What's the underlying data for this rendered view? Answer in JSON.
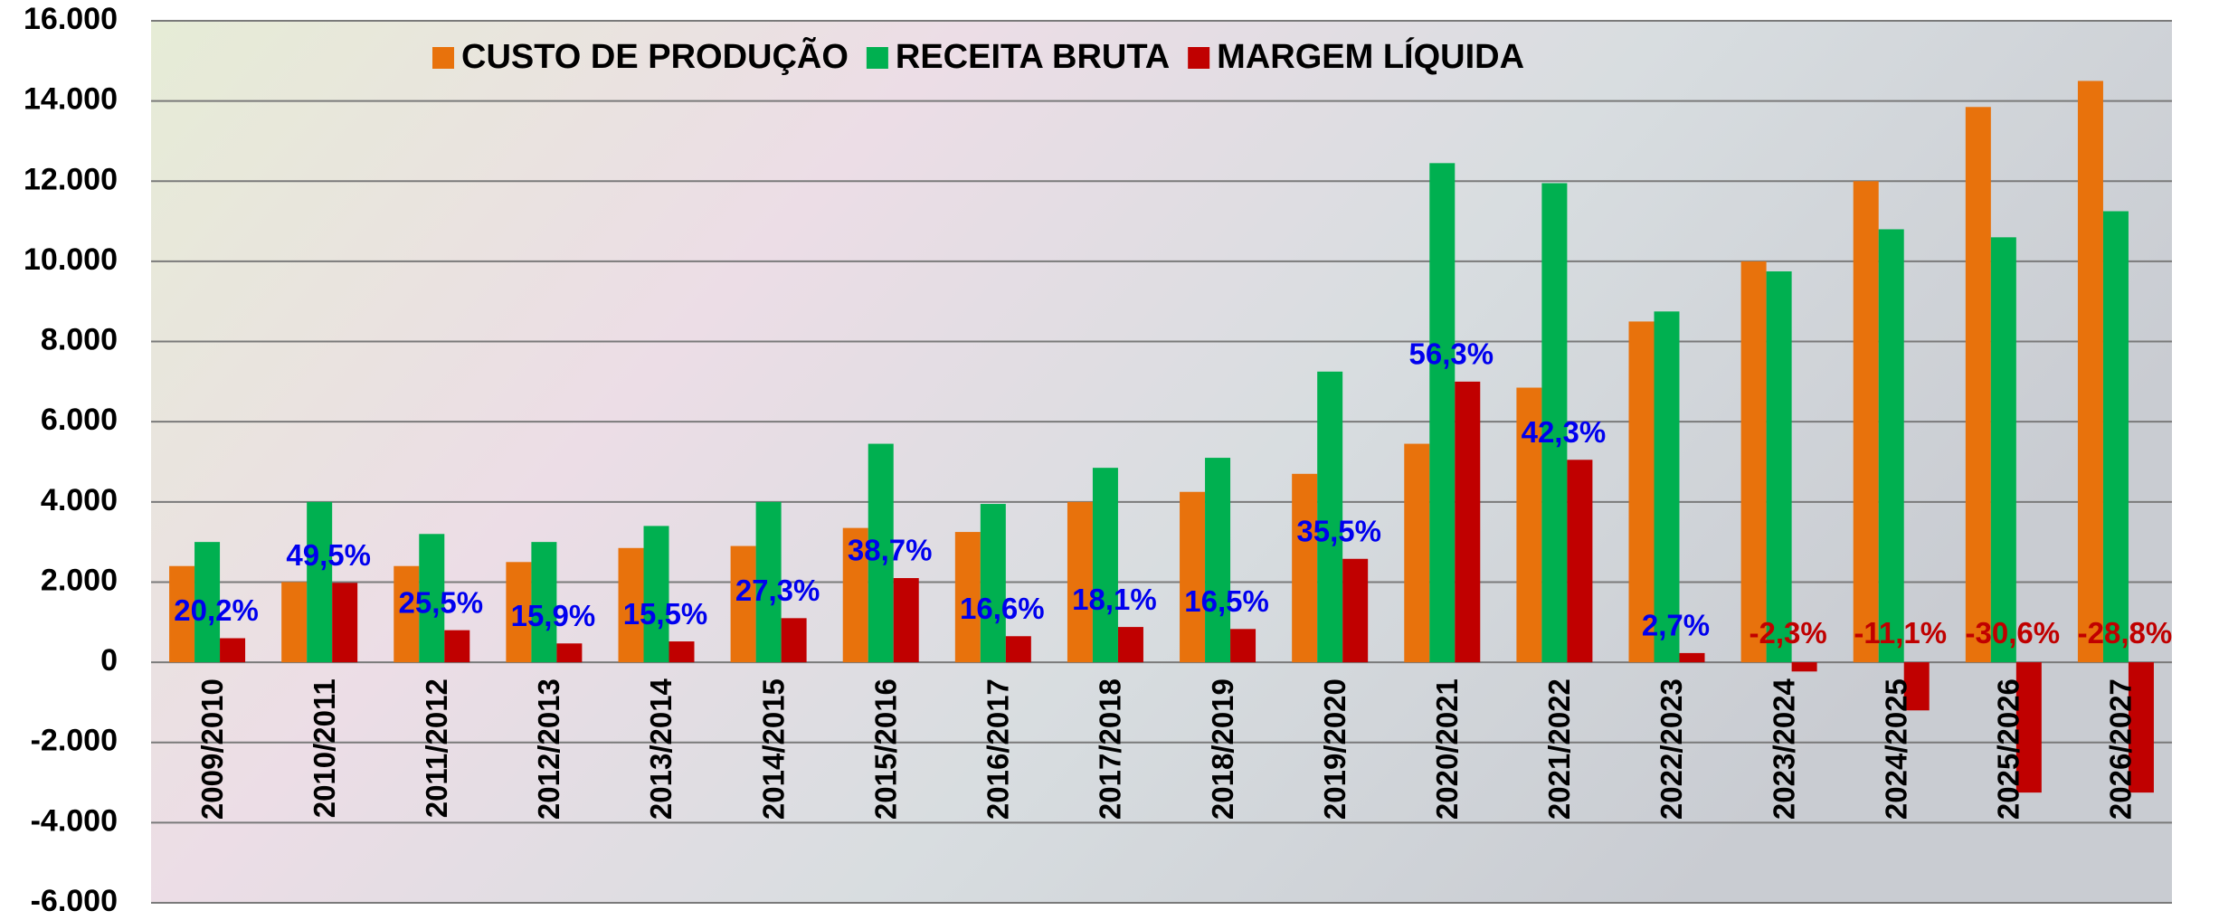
{
  "chart_data": {
    "type": "bar",
    "categories": [
      "2009/2010",
      "2010/2011",
      "2011/2012",
      "2012/2013",
      "2013/2014",
      "2014/2015",
      "2015/2016",
      "2016/2017",
      "2017/2018",
      "2018/2019",
      "2019/2020",
      "2020/2021",
      "2021/2022",
      "2022/2023",
      "2023/2024",
      "2024/2025",
      "2025/2026",
      "2026/2027"
    ],
    "series": [
      {
        "name": "CUSTO DE PRODUÇÃO",
        "color": "#e8720c",
        "values": [
          2400,
          2000,
          2400,
          2500,
          2850,
          2900,
          3350,
          3250,
          4000,
          4250,
          4700,
          5450,
          6850,
          8500,
          10000,
          12000,
          13850,
          14500
        ]
      },
      {
        "name": "RECEITA BRUTA",
        "color": "#00b050",
        "values": [
          3000,
          4000,
          3200,
          3000,
          3400,
          4000,
          5450,
          3950,
          4850,
          5100,
          7250,
          12450,
          11950,
          8750,
          9750,
          10800,
          10600,
          11250
        ]
      },
      {
        "name": "MARGEM LÍQUIDA",
        "color": "#c00000",
        "values": [
          600,
          1980,
          800,
          470,
          520,
          1100,
          2100,
          650,
          880,
          830,
          2580,
          7000,
          5050,
          230,
          -230,
          -1200,
          -3250,
          -3250
        ]
      }
    ],
    "margin_percent": {
      "values": [
        20.2,
        49.5,
        25.5,
        15.9,
        15.5,
        27.3,
        38.7,
        16.6,
        18.1,
        16.5,
        35.5,
        56.3,
        42.3,
        2.7,
        -2.3,
        -11.1,
        -30.6,
        -28.8
      ],
      "value_labels": [
        "20,2%",
        "49,5%",
        "25,5%",
        "15,9%",
        "15,5%",
        "27,3%",
        "38,7%",
        "16,6%",
        "18,1%",
        "16,5%",
        "35,5%",
        "56,3%",
        "42,3%",
        "2,7%",
        "-2,3%",
        "-11,1%",
        "-30,6%",
        "-28,8%"
      ],
      "positive_color": "#0000ee",
      "negative_color": "#c00000"
    },
    "ylim": [
      -6000,
      16000
    ],
    "yticks": [
      {
        "value": -6000,
        "label": "-6.000"
      },
      {
        "value": -4000,
        "label": "-4.000"
      },
      {
        "value": -2000,
        "label": "-2.000"
      },
      0,
      {
        "value": 2000,
        "label": "2.000"
      },
      {
        "value": 4000,
        "label": "4.000"
      },
      {
        "value": 6000,
        "label": "6.000"
      },
      {
        "value": 8000,
        "label": "8.000"
      },
      {
        "value": 10000,
        "label": "10.000"
      },
      {
        "value": 12000,
        "label": "12.000"
      },
      {
        "value": 14000,
        "label": "14.000"
      },
      {
        "value": 16000,
        "label": "16.000"
      }
    ],
    "grid": true
  }
}
